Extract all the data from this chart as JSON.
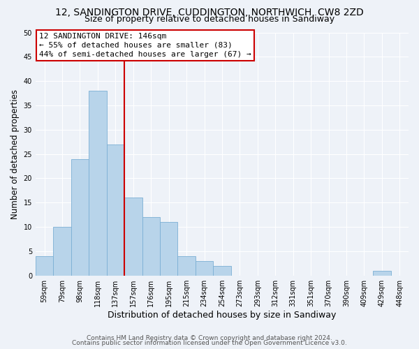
{
  "title_line1": "12, SANDINGTON DRIVE, CUDDINGTON, NORTHWICH, CW8 2ZD",
  "title_line2": "Size of property relative to detached houses in Sandiway",
  "xlabel": "Distribution of detached houses by size in Sandiway",
  "ylabel": "Number of detached properties",
  "bar_labels": [
    "59sqm",
    "79sqm",
    "98sqm",
    "118sqm",
    "137sqm",
    "157sqm",
    "176sqm",
    "195sqm",
    "215sqm",
    "234sqm",
    "254sqm",
    "273sqm",
    "293sqm",
    "312sqm",
    "331sqm",
    "351sqm",
    "370sqm",
    "390sqm",
    "409sqm",
    "429sqm",
    "448sqm"
  ],
  "bar_values": [
    4,
    10,
    24,
    38,
    27,
    16,
    12,
    11,
    4,
    3,
    2,
    0,
    0,
    0,
    0,
    0,
    0,
    0,
    0,
    1,
    0
  ],
  "bar_color": "#b8d4ea",
  "bar_edgecolor": "#7bafd4",
  "vline_x_index": 4.5,
  "vline_color": "#cc0000",
  "ylim": [
    0,
    50
  ],
  "yticks": [
    0,
    5,
    10,
    15,
    20,
    25,
    30,
    35,
    40,
    45,
    50
  ],
  "annotation_line1": "12 SANDINGTON DRIVE: 146sqm",
  "annotation_line2": "← 55% of detached houses are smaller (83)",
  "annotation_line3": "44% of semi-detached houses are larger (67) →",
  "annotation_box_edgecolor": "#cc0000",
  "footer_line1": "Contains HM Land Registry data © Crown copyright and database right 2024.",
  "footer_line2": "Contains public sector information licensed under the Open Government Licence v3.0.",
  "background_color": "#eef2f8",
  "grid_color": "#ffffff",
  "title1_fontsize": 10,
  "title2_fontsize": 9,
  "ylabel_fontsize": 8.5,
  "xlabel_fontsize": 9,
  "tick_fontsize": 7,
  "annot_fontsize": 8,
  "footer_fontsize": 6.5
}
